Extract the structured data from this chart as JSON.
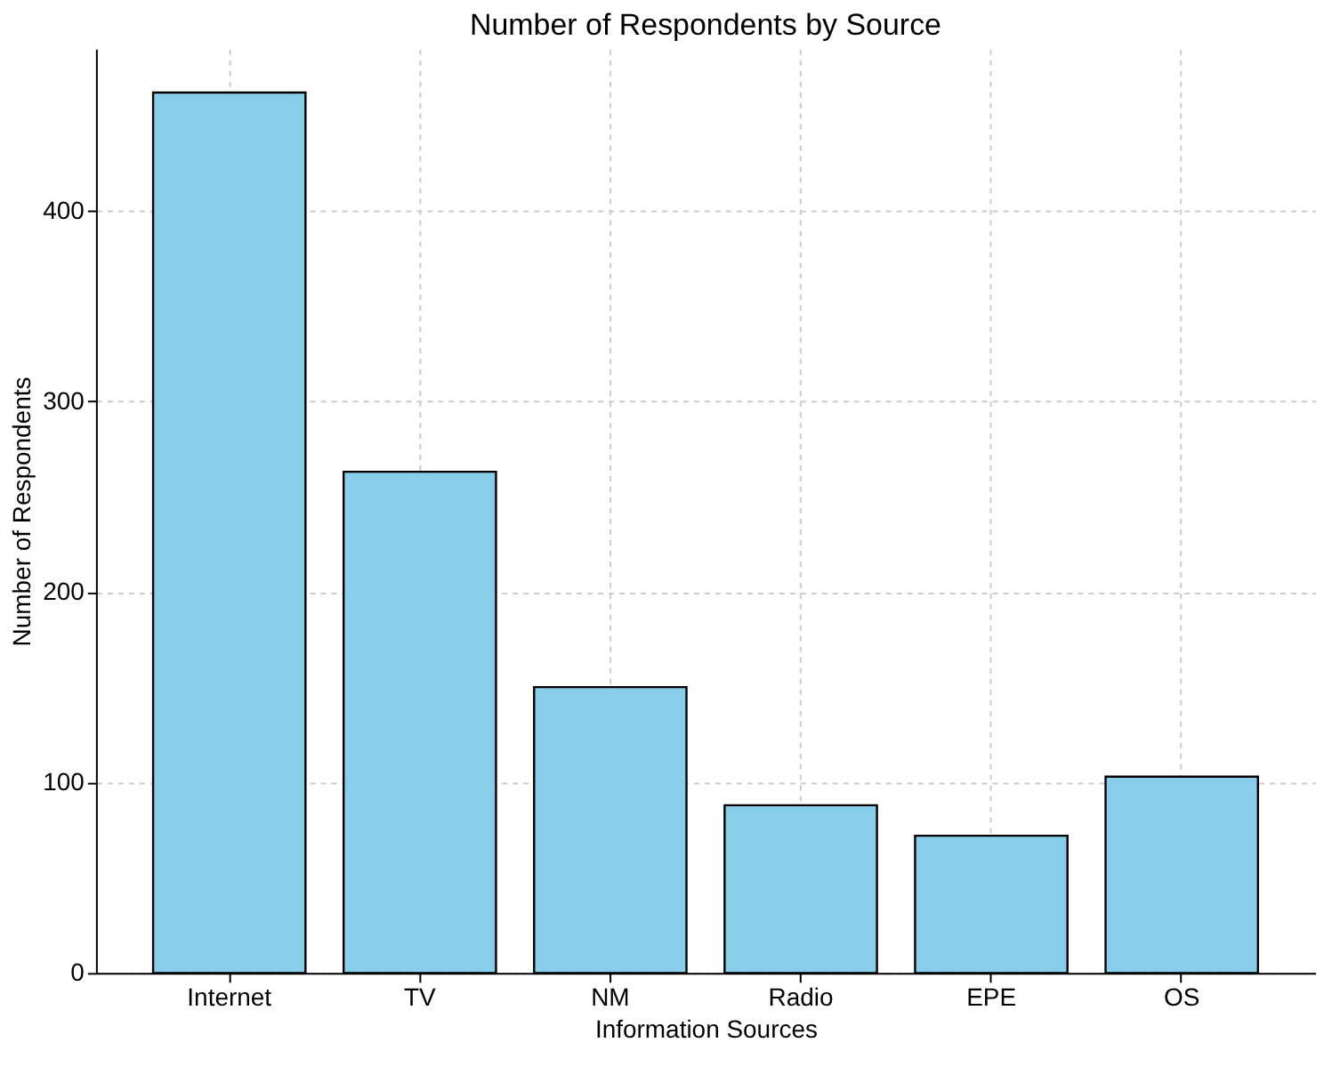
{
  "chart_data": {
    "type": "bar",
    "title": "Number of Respondents by Source",
    "xlabel": "Information Sources",
    "ylabel": "Number of Respondents",
    "categories": [
      "Internet",
      "TV",
      "NM",
      "Radio",
      "EPE",
      "OS"
    ],
    "values": [
      462,
      263,
      150,
      88,
      72,
      103
    ],
    "color": "#87ceeb",
    "ylim": [
      0,
      485
    ],
    "yticks": [
      0,
      100,
      200,
      300,
      400
    ],
    "grid": true
  }
}
